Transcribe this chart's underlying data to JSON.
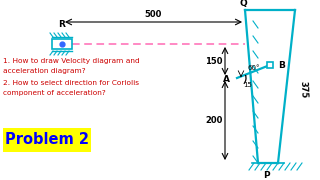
{
  "bg_color": "#ffffff",
  "cyan": "#00b0c8",
  "red_text": "#cc0000",
  "yellow_bg": "#ffff00",
  "blue_dot": "#3366ff",
  "pink_dash": "#ff69b4",
  "black": "#000000",
  "title_lines": [
    "1. How to draw Velocity diagram and",
    "acceleration diagram?",
    "2. How to select direction for Coriolis",
    "component of acceleration?"
  ],
  "problem_label": "Problem 2",
  "dim_500": "500",
  "dim_150": "150",
  "dim_200": "200",
  "dim_375": "375",
  "dim_15": "15",
  "dim_60": "60°",
  "label_Q": "Q",
  "label_P": "P",
  "label_A": "A",
  "label_B": "B",
  "label_R": "R"
}
